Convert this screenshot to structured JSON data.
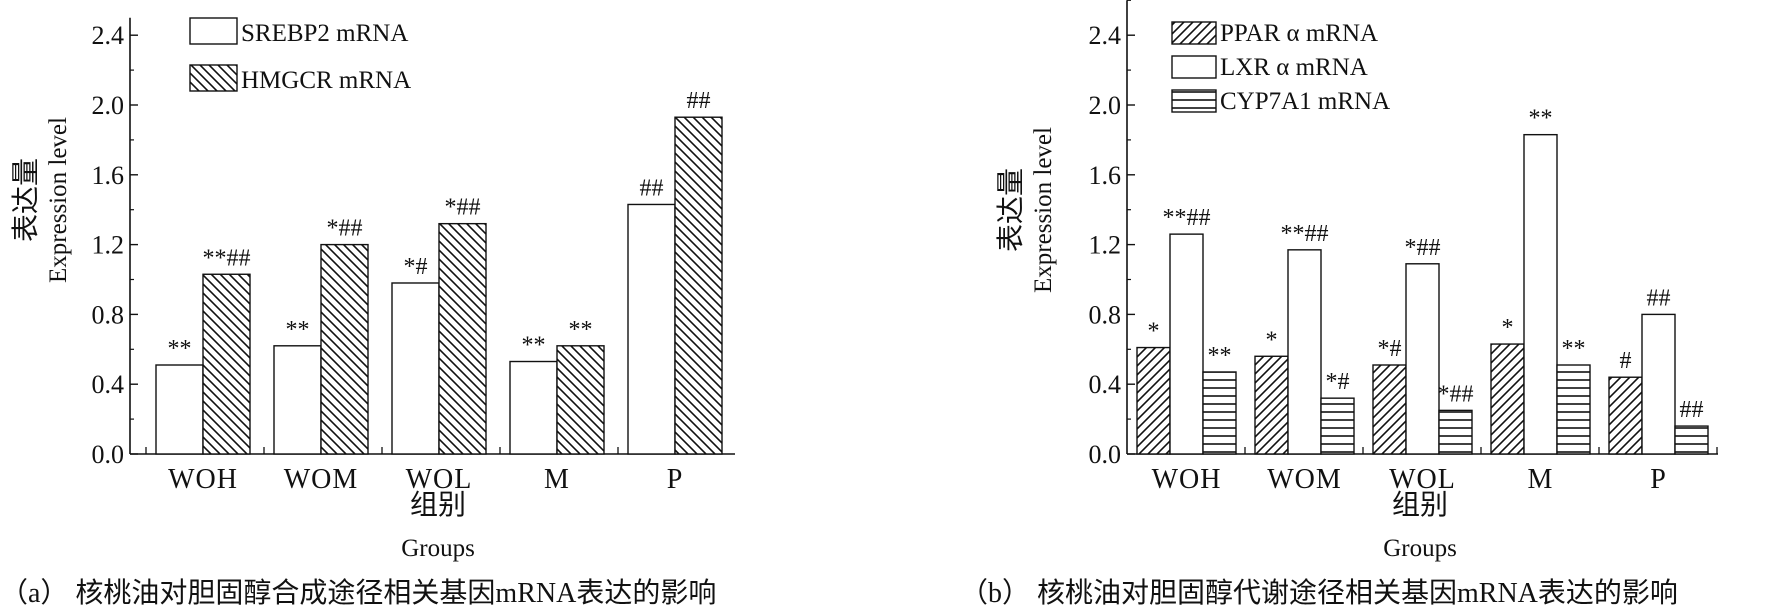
{
  "chart_data": [
    {
      "type": "bar",
      "categories": [
        "WOH",
        "WOM",
        "WOL",
        "M",
        "P"
      ],
      "series": [
        {
          "name": "SREBP2 mRNA",
          "pattern": "plain",
          "values": [
            0.51,
            0.62,
            0.98,
            0.53,
            1.43
          ],
          "labels": [
            "**",
            "**",
            "*#",
            "**",
            "##"
          ]
        },
        {
          "name": "HMGCR mRNA",
          "pattern": "hatch-back",
          "values": [
            1.03,
            1.2,
            1.32,
            0.62,
            1.93
          ],
          "labels": [
            "**##",
            "*##",
            "*##",
            "**",
            "##"
          ]
        }
      ],
      "yticks": [
        "0.0",
        "0.4",
        "0.8",
        "1.2",
        "1.6",
        "2.0",
        "2.4"
      ],
      "ylim": [
        0,
        2.5
      ],
      "ylabel_cn": "表达量",
      "ylabel": "Expression level",
      "xlabel_cn": "组别",
      "xlabel": "Groups",
      "caption": "（a） 核桃油对胆固醇合成途径相关基因mRNA表达的影响",
      "legend_position": "top-left"
    },
    {
      "type": "bar",
      "categories": [
        "WOH",
        "WOM",
        "WOL",
        "M",
        "P"
      ],
      "series": [
        {
          "name": "PPAR α  mRNA",
          "pattern": "hatch-forward",
          "values": [
            0.61,
            0.56,
            0.51,
            0.63,
            0.44
          ],
          "labels": [
            "*",
            "*",
            "*#",
            "*",
            "#"
          ]
        },
        {
          "name": "LXR α mRNA",
          "pattern": "plain",
          "values": [
            1.26,
            1.17,
            1.09,
            1.83,
            0.8
          ],
          "labels": [
            "**##",
            "**##",
            "*##",
            "**",
            "##"
          ]
        },
        {
          "name": "CYP7A1 mRNA",
          "pattern": "horizontal",
          "values": [
            0.47,
            0.32,
            0.25,
            0.51,
            0.16
          ],
          "labels": [
            "**",
            "*#",
            "*##",
            "**",
            "##"
          ]
        }
      ],
      "yticks": [
        "0.0",
        "0.4",
        "0.8",
        "1.2",
        "1.6",
        "2.0",
        "2.4"
      ],
      "ylim": [
        0,
        2.6
      ],
      "ylabel_cn": "表达量",
      "ylabel": "Expression level",
      "xlabel_cn": "组别",
      "xlabel": "Groups",
      "caption": "（b） 核桃油对胆固醇代谢途径相关基因mRNA表达的影响",
      "legend_position": "top-left"
    }
  ]
}
